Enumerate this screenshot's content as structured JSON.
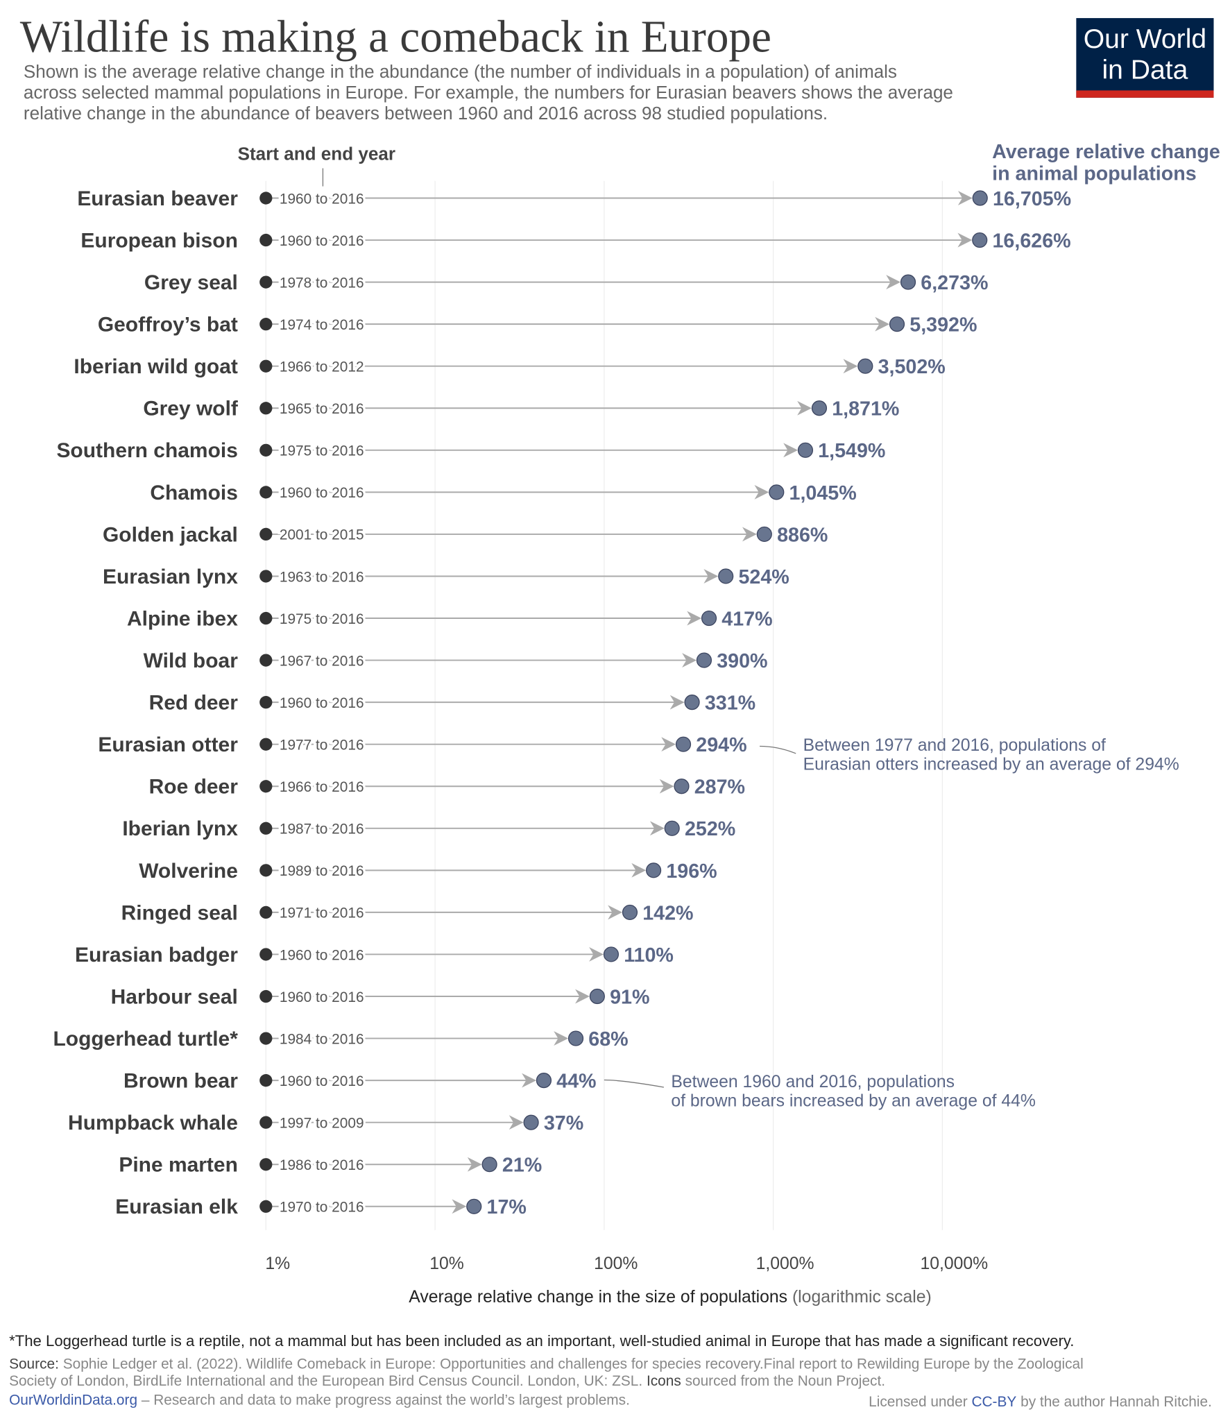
{
  "chart_data": {
    "type": "arrow",
    "title": "Wildlife is making a comeback in Europe",
    "subtitle": [
      "Shown is the average relative change in the abundance (the number of individuals in a population) of animals",
      "across selected mammal populations in Europe. For example, the numbers for Eurasian beavers shows the average",
      "relative change in the abundance of beavers between 1960 and 2016 across 98 studied populations."
    ],
    "logo": [
      "Our World",
      "in Data"
    ],
    "period_header": "Start and end year",
    "value_header": [
      "Average relative change",
      "in animal populations"
    ],
    "categories": [
      "Eurasian beaver",
      "European bison",
      "Grey seal",
      "Geoffroy’s bat",
      "Iberian wild goat",
      "Grey wolf",
      "Southern chamois",
      "Chamois",
      "Golden jackal",
      "Eurasian lynx",
      "Alpine ibex",
      "Wild boar",
      "Red deer",
      "Eurasian otter",
      "Roe deer",
      "Iberian lynx",
      "Wolverine",
      "Ringed seal",
      "Eurasian badger",
      "Harbour seal",
      "Loggerhead turtle*",
      "Brown bear",
      "Humpback whale",
      "Pine marten",
      "Eurasian elk"
    ],
    "periods": [
      "1960 to 2016",
      "1960 to 2016",
      "1978 to 2016",
      "1974 to 2016",
      "1966 to 2012",
      "1965 to 2016",
      "1975 to 2016",
      "1960 to 2016",
      "2001 to 2015",
      "1963 to 2016",
      "1975 to 2016",
      "1967 to 2016",
      "1960 to 2016",
      "1977 to 2016",
      "1966 to 2016",
      "1987 to 2016",
      "1989 to 2016",
      "1971 to 2016",
      "1960 to 2016",
      "1960 to 2016",
      "1984 to 2016",
      "1960 to 2016",
      "1997 to 2009",
      "1986 to 2016",
      "1970 to 2016"
    ],
    "values": [
      16705,
      16626,
      6273,
      5392,
      3502,
      1871,
      1549,
      1045,
      886,
      524,
      417,
      390,
      331,
      294,
      287,
      252,
      196,
      142,
      110,
      91,
      68,
      44,
      37,
      21,
      17
    ],
    "value_labels": [
      "16,705%",
      "16,626%",
      "6,273%",
      "5,392%",
      "3,502%",
      "1,871%",
      "1,549%",
      "1,045%",
      "886%",
      "524%",
      "417%",
      "390%",
      "331%",
      "294%",
      "287%",
      "252%",
      "196%",
      "142%",
      "110%",
      "91%",
      "68%",
      "44%",
      "37%",
      "21%",
      "17%"
    ],
    "color": "#68758f",
    "log_scale": true,
    "grid": true,
    "xlim": [
      1,
      100000
    ],
    "xticks": [
      {
        "value": 1,
        "label": "1%"
      },
      {
        "value": 10,
        "label": "10%"
      },
      {
        "value": 100,
        "label": "100%"
      },
      {
        "value": 1000,
        "label": "1,000%"
      },
      {
        "value": 10000,
        "label": "10,000%"
      }
    ],
    "xlabel": "Average relative change in the size of populations",
    "xlabel_note": "(logarithmic scale)",
    "annotations": [
      [
        "Between 1977 and 2016, populations of",
        "Eurasian otters increased by an average of 294%"
      ],
      [
        "Between 1960 and 2016, populations",
        "of brown bears increased by an average of 44%"
      ]
    ],
    "footnote": "*The Loggerhead turtle is a reptile, not a mammal but has been included as an important, well-studied animal in Europe that has made a significant recovery.",
    "source_label": "Source:",
    "source_lines": [
      "Sophie Ledger et al. (2022). Wildlife Comeback in Europe: Opportunities and challenges for species recovery.Final report to Rewilding Europe by the Zoological",
      "Society of London, BirdLife International and the European Bird Census Council. London, UK: ZSL."
    ],
    "icons_label": "Icons",
    "icons_text": "sourced from the Noun Project.",
    "site": "OurWorldinData.org",
    "site_text": "– Research and data to make progress against the world’s largest problems.",
    "license_pre": "Licensed under",
    "license_link": "CC-BY",
    "license_post": "by the author Hannah Ritchie."
  }
}
